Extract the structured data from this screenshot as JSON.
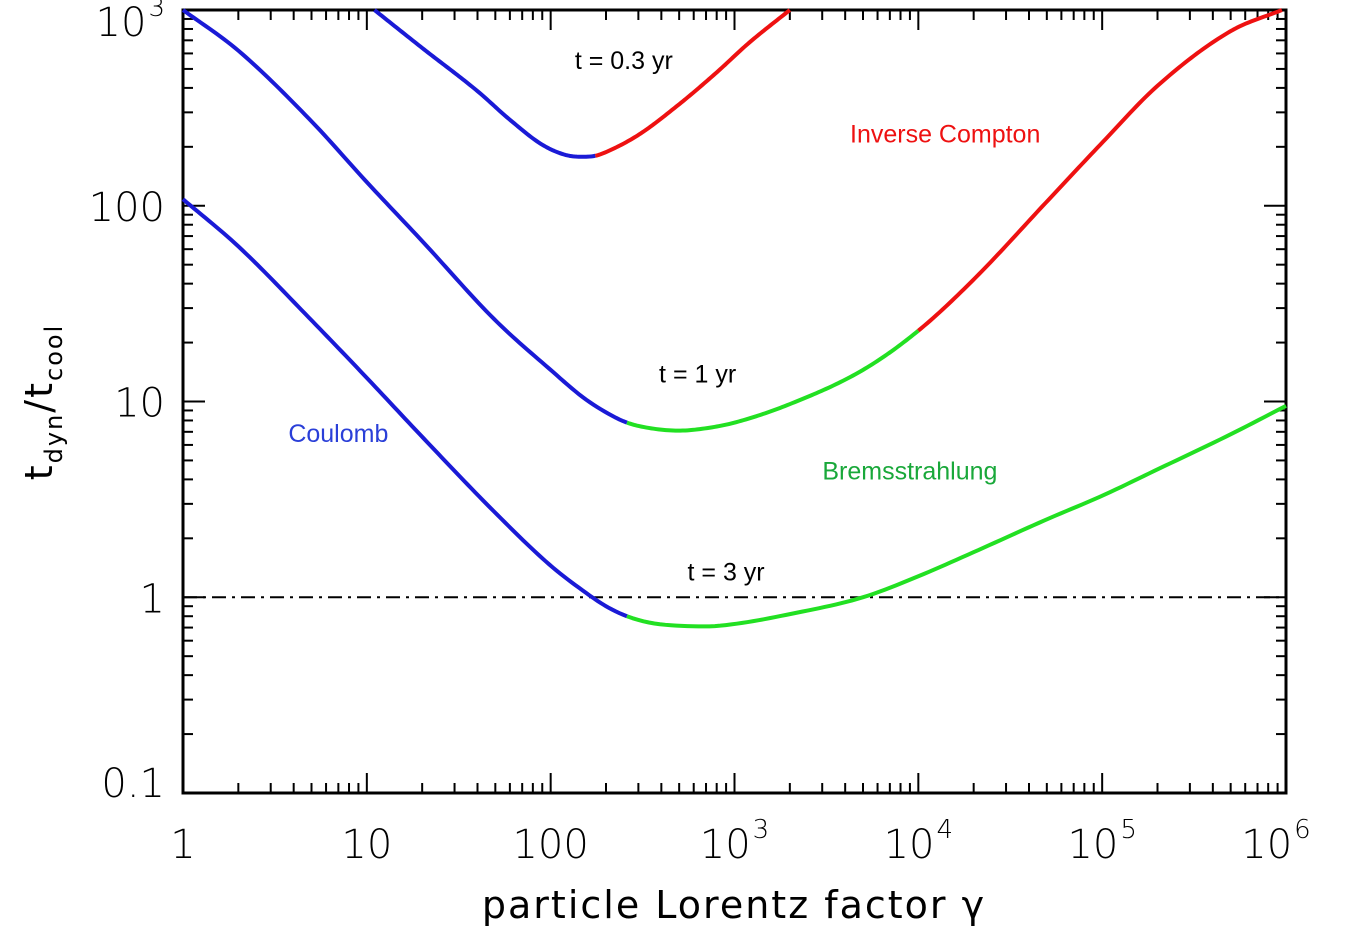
{
  "chart_data": {
    "type": "line",
    "xscale": "log",
    "yscale": "log",
    "xlim": [
      1,
      1000000
    ],
    "ylim": [
      0.1,
      1000
    ],
    "xlabel": "particle Lorentz factor γ",
    "ylabel": "t_dyn/t_cool",
    "ylabel_main": "t",
    "ylabel_sub1": "dyn",
    "ylabel_slash": "/",
    "ylabel_main2": "t",
    "ylabel_sub2": "cool",
    "x_ticks": [
      {
        "value": 1,
        "base": "1",
        "exp": ""
      },
      {
        "value": 10,
        "base": "10",
        "exp": ""
      },
      {
        "value": 100,
        "base": "100",
        "exp": ""
      },
      {
        "value": 1000,
        "base": "10",
        "exp": "3"
      },
      {
        "value": 10000,
        "base": "10",
        "exp": "4"
      },
      {
        "value": 100000,
        "base": "10",
        "exp": "5"
      },
      {
        "value": 1000000,
        "base": "10",
        "exp": "6"
      }
    ],
    "y_ticks": [
      {
        "value": 0.1,
        "base": "0.1",
        "exp": ""
      },
      {
        "value": 1,
        "base": "1",
        "exp": ""
      },
      {
        "value": 10,
        "base": "10",
        "exp": ""
      },
      {
        "value": 100,
        "base": "100",
        "exp": ""
      },
      {
        "value": 1000,
        "base": "10",
        "exp": "3"
      }
    ],
    "reference_line": {
      "y": 1,
      "style": "dash-dot",
      "color": "#000000"
    },
    "colors": {
      "coulomb": "#1a1ad6",
      "bremsstrahlung": "#22e022",
      "inverse_compton": "#ee1111"
    },
    "series": [
      {
        "label": "t = 0.3 yr",
        "points": [
          [
            11,
            1000
          ],
          [
            20,
            640
          ],
          [
            40,
            385
          ],
          [
            60,
            275
          ],
          [
            90,
            205
          ],
          [
            120,
            182
          ],
          [
            145,
            178
          ],
          [
            175,
            180
          ],
          [
            200,
            188
          ],
          [
            300,
            230
          ],
          [
            500,
            330
          ],
          [
            800,
            480
          ],
          [
            1200,
            680
          ],
          [
            2000,
            1000
          ]
        ],
        "segments": [
          {
            "process": "Coulomb",
            "x_range": [
              11,
              175
            ]
          },
          {
            "process": "Inverse Compton",
            "x_range": [
              175,
              2000
            ]
          }
        ]
      },
      {
        "label": "t = 1 yr",
        "points": [
          [
            1,
            1000
          ],
          [
            2,
            620
          ],
          [
            5,
            270
          ],
          [
            10,
            132
          ],
          [
            20,
            66
          ],
          [
            50,
            26
          ],
          [
            100,
            14.5
          ],
          [
            150,
            10.5
          ],
          [
            200,
            8.8
          ],
          [
            260,
            7.8
          ],
          [
            350,
            7.3
          ],
          [
            500,
            7.1
          ],
          [
            700,
            7.3
          ],
          [
            1000,
            7.8
          ],
          [
            2000,
            9.7
          ],
          [
            5000,
            14.5
          ],
          [
            10000,
            23
          ],
          [
            20000,
            42
          ],
          [
            50000,
            105
          ],
          [
            100000,
            210
          ],
          [
            200000,
            410
          ],
          [
            500000,
            780
          ],
          [
            950000,
            1000
          ]
        ],
        "segments": [
          {
            "process": "Coulomb",
            "x_range": [
              1,
              260
            ]
          },
          {
            "process": "Bremsstrahlung",
            "x_range": [
              260,
              10000
            ]
          },
          {
            "process": "Inverse Compton",
            "x_range": [
              10000,
              950000
            ]
          }
        ]
      },
      {
        "label": "t = 3 yr",
        "points": [
          [
            1,
            108
          ],
          [
            2,
            62
          ],
          [
            5,
            26
          ],
          [
            10,
            13.2
          ],
          [
            20,
            6.6
          ],
          [
            50,
            2.7
          ],
          [
            100,
            1.45
          ],
          [
            150,
            1.08
          ],
          [
            200,
            0.9
          ],
          [
            260,
            0.8
          ],
          [
            350,
            0.74
          ],
          [
            500,
            0.715
          ],
          [
            700,
            0.71
          ],
          [
            1000,
            0.73
          ],
          [
            2000,
            0.82
          ],
          [
            5000,
            1.0
          ],
          [
            10000,
            1.28
          ],
          [
            20000,
            1.7
          ],
          [
            50000,
            2.5
          ],
          [
            100000,
            3.3
          ],
          [
            200000,
            4.5
          ],
          [
            500000,
            6.8
          ],
          [
            1000000,
            9.5
          ]
        ],
        "segments": [
          {
            "process": "Coulomb",
            "x_range": [
              1,
              260
            ]
          },
          {
            "process": "Bremsstrahlung",
            "x_range": [
              260,
              1000000
            ]
          }
        ]
      }
    ],
    "annotations": [
      {
        "text": "t = 0.3 yr",
        "color": "#000000",
        "at": [
          250,
          500
        ]
      },
      {
        "text": "t = 1 yr",
        "color": "#000000",
        "at": [
          630,
          12.5
        ]
      },
      {
        "text": "t = 3 yr",
        "color": "#000000",
        "at": [
          900,
          1.22
        ]
      },
      {
        "text": "Inverse Compton",
        "color": "#ee1111",
        "at": [
          14000,
          210
        ]
      },
      {
        "text": "Coulomb",
        "color": "#2a3fd8",
        "at": [
          7,
          6.2
        ]
      },
      {
        "text": "Bremsstrahlung",
        "color": "#19a83a",
        "at": [
          9000,
          4
        ]
      }
    ],
    "grid": false,
    "legend": "none"
  }
}
